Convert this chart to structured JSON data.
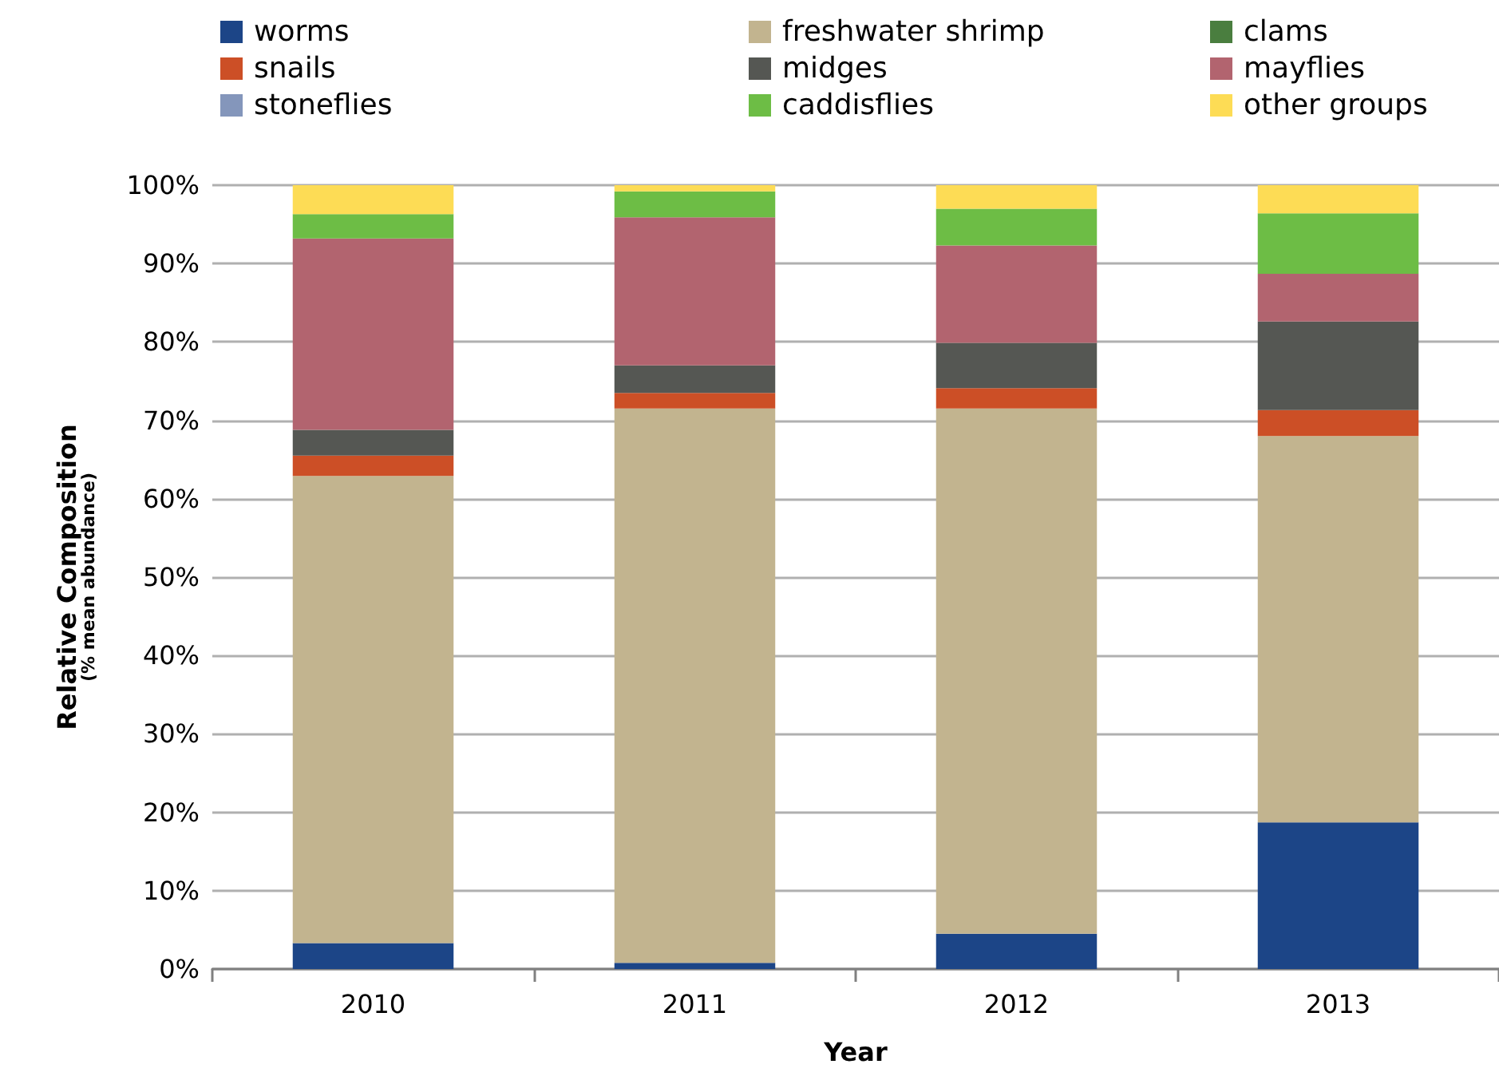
{
  "chart_data": {
    "type": "bar",
    "stacked": true,
    "xlabel": "Year",
    "ylabel": "Relative Composition\n(% mean abundance)",
    "categories": [
      "2010",
      "2011",
      "2012",
      "2013"
    ],
    "series": [
      {
        "name": "worms",
        "color": "#1c4587",
        "values": [
          3.3,
          0.8,
          4.5,
          18.7
        ]
      },
      {
        "name": "freshwater shrimp",
        "color": "#c2b48f",
        "values": [
          59.6,
          70.7,
          67.0,
          49.3
        ]
      },
      {
        "name": "clams",
        "color": "#4a7e3f",
        "values": [
          0,
          0,
          0,
          0
        ]
      },
      {
        "name": "snails",
        "color": "#cc4f26",
        "values": [
          2.6,
          2.0,
          2.6,
          3.3
        ]
      },
      {
        "name": "midges",
        "color": "#555753",
        "values": [
          3.3,
          3.5,
          5.8,
          11.3
        ]
      },
      {
        "name": "mayflies",
        "color": "#b2646f",
        "values": [
          24.4,
          18.9,
          12.4,
          6.1
        ]
      },
      {
        "name": "stoneflies",
        "color": "#8496bb",
        "values": [
          0,
          0,
          0,
          0
        ]
      },
      {
        "name": "caddisflies",
        "color": "#6dbd45",
        "values": [
          3.1,
          3.3,
          4.7,
          7.7
        ]
      },
      {
        "name": "other groups",
        "color": "#fddc55",
        "values": [
          3.7,
          0.8,
          3.0,
          3.6
        ]
      }
    ],
    "ylim": [
      0,
      100
    ],
    "yticks": [
      {
        "value": 0,
        "label": "0%"
      },
      {
        "value": 10,
        "label": "10%"
      },
      {
        "value": 20,
        "label": "20%"
      },
      {
        "value": 30,
        "label": "30%"
      },
      {
        "value": 40,
        "label": "40%"
      },
      {
        "value": 50,
        "label": "50%"
      },
      {
        "value": 60,
        "label": "60%"
      },
      {
        "value": 70,
        "label": "70%"
      },
      {
        "value": 80,
        "label": "80%"
      },
      {
        "value": 90,
        "label": "90%"
      },
      {
        "value": 100,
        "label": "100%"
      }
    ],
    "grid": "y",
    "legend": "top"
  }
}
